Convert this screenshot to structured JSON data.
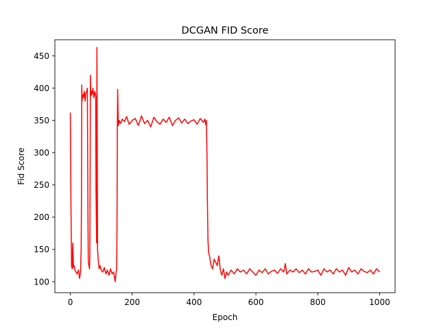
{
  "chart_data": {
    "type": "line",
    "title": "DCGAN FID Score",
    "xlabel": "Epoch",
    "ylabel": "Fid Score",
    "xlim": [
      -50,
      1050
    ],
    "ylim": [
      83,
      475
    ],
    "xticks": [
      0,
      200,
      400,
      600,
      800,
      1000
    ],
    "yticks": [
      100,
      150,
      200,
      250,
      300,
      350,
      400,
      450
    ],
    "grid": false,
    "legend": "none",
    "series": [
      {
        "color": "#ff0000",
        "x": [
          0,
          2,
          4,
          6,
          8,
          10,
          12,
          15,
          18,
          22,
          26,
          30,
          33,
          35,
          36,
          37,
          38,
          40,
          42,
          45,
          48,
          50,
          53,
          55,
          57,
          58,
          60,
          62,
          63,
          65,
          66,
          68,
          70,
          73,
          76,
          79,
          82,
          83,
          85,
          86,
          87,
          88,
          90,
          93,
          96,
          100,
          105,
          110,
          115,
          120,
          125,
          130,
          135,
          140,
          145,
          148,
          150,
          151,
          152,
          153,
          155,
          158,
          162,
          168,
          175,
          182,
          190,
          200,
          210,
          220,
          230,
          240,
          250,
          260,
          270,
          280,
          290,
          300,
          310,
          320,
          330,
          340,
          350,
          360,
          370,
          380,
          390,
          400,
          410,
          420,
          430,
          435,
          438,
          440,
          442,
          443,
          445,
          447,
          450,
          455,
          460,
          465,
          470,
          475,
          480,
          485,
          490,
          495,
          500,
          505,
          510,
          520,
          530,
          540,
          550,
          560,
          570,
          580,
          590,
          600,
          610,
          620,
          630,
          640,
          650,
          660,
          670,
          680,
          690,
          695,
          700,
          710,
          720,
          730,
          740,
          750,
          760,
          770,
          780,
          790,
          800,
          810,
          820,
          830,
          840,
          850,
          860,
          870,
          880,
          890,
          900,
          910,
          920,
          930,
          940,
          950,
          960,
          970,
          980,
          990,
          1000
        ],
        "values": [
          362,
          220,
          125,
          120,
          160,
          122,
          125,
          118,
          115,
          112,
          118,
          105,
          115,
          152,
          230,
          405,
          380,
          390,
          385,
          395,
          380,
          392,
          395,
          400,
          200,
          130,
          125,
          120,
          140,
          420,
          388,
          395,
          390,
          400,
          385,
          395,
          388,
          240,
          160,
          463,
          300,
          150,
          135,
          120,
          125,
          118,
          115,
          122,
          112,
          118,
          110,
          120,
          112,
          115,
          100,
          115,
          120,
          200,
          340,
          398,
          342,
          350,
          345,
          352,
          348,
          356,
          344,
          350,
          353,
          342,
          357,
          345,
          350,
          340,
          355,
          348,
          344,
          352,
          347,
          355,
          342,
          350,
          354,
          346,
          352,
          345,
          349,
          351,
          344,
          353,
          347,
          352,
          343,
          350,
          290,
          230,
          165,
          145,
          140,
          125,
          120,
          135,
          130,
          125,
          140,
          118,
          110,
          120,
          105,
          115,
          110,
          118,
          112,
          120,
          115,
          118,
          112,
          120,
          115,
          110,
          118,
          114,
          120,
          112,
          116,
          118,
          113,
          120,
          115,
          128,
          112,
          118,
          115,
          120,
          114,
          118,
          112,
          120,
          115,
          116,
          118,
          110,
          120,
          115,
          118,
          112,
          120,
          115,
          118,
          110,
          122,
          115,
          118,
          112,
          120,
          116,
          114,
          118,
          112,
          120,
          115
        ]
      }
    ]
  }
}
